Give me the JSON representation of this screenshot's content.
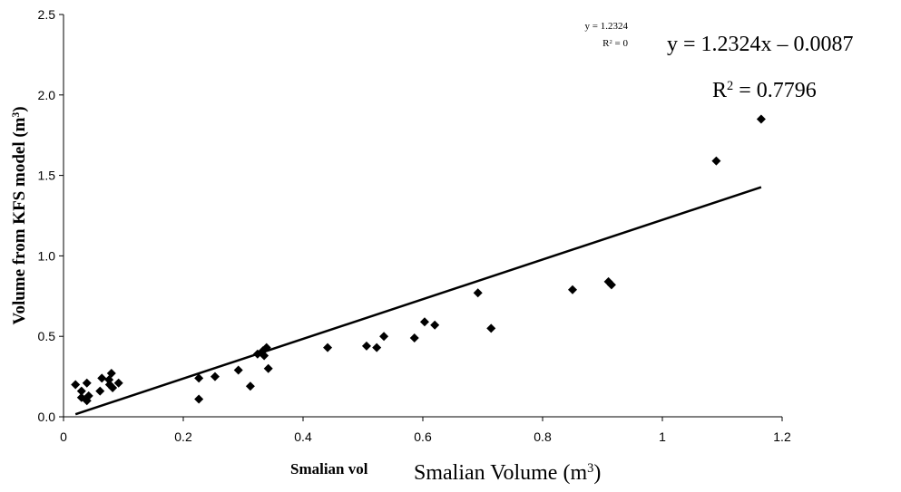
{
  "chart_data": {
    "type": "scatter",
    "y_label": [
      "Volume from KFS model (m",
      "3",
      ")"
    ],
    "x_label_short": "Smalian vol",
    "x_label": [
      "Smalian Volume (m",
      "3",
      ")"
    ],
    "equation_small": "y = 1.2324",
    "r2_small": [
      "R",
      "2",
      " = 0"
    ],
    "equation": "y = 1.2324x – 0.0087",
    "r2": [
      "R",
      "2",
      " = 0.7796"
    ],
    "color": "#000000",
    "x": [
      0.02,
      0.03,
      0.03,
      0.039,
      0.039,
      0.042,
      0.061,
      0.064,
      0.076,
      0.08,
      0.077,
      0.082,
      0.092,
      0.226,
      0.226,
      0.253,
      0.292,
      0.312,
      0.324,
      0.333,
      0.335,
      0.339,
      0.342,
      0.441,
      0.506,
      0.523,
      0.535,
      0.586,
      0.603,
      0.62,
      0.692,
      0.714,
      0.85,
      0.91,
      0.915,
      1.09,
      1.165
    ],
    "values": [
      0.2,
      0.16,
      0.12,
      0.21,
      0.1,
      0.13,
      0.16,
      0.24,
      0.23,
      0.27,
      0.2,
      0.18,
      0.21,
      0.24,
      0.11,
      0.25,
      0.29,
      0.19,
      0.39,
      0.41,
      0.38,
      0.43,
      0.3,
      0.43,
      0.44,
      0.43,
      0.5,
      0.49,
      0.59,
      0.57,
      0.77,
      0.55,
      0.79,
      0.84,
      0.82,
      1.59,
      1.85
    ],
    "trendline": {
      "x": [
        0.02,
        1.165
      ],
      "values": [
        0.016,
        1.427
      ]
    },
    "xlim": [
      0,
      1.2
    ],
    "xticks": [
      0,
      {
        "value": 0.2,
        "label": "0.2"
      },
      {
        "value": 0.4,
        "label": "0.4"
      },
      {
        "value": 0.6,
        "label": "0.6"
      },
      {
        "value": 0.8,
        "label": "0.8"
      },
      1,
      {
        "value": 1.2,
        "label": "1.2"
      }
    ],
    "ylim": [
      0,
      2.5
    ],
    "yticks": [
      {
        "value": 0,
        "label": "0.0"
      },
      {
        "value": 0.5,
        "label": "0.5"
      },
      {
        "value": 1,
        "label": "1.0"
      },
      {
        "value": 1.5,
        "label": "1.5"
      },
      {
        "value": 2,
        "label": "2.0"
      },
      {
        "value": 2.5,
        "label": "2.5"
      }
    ]
  }
}
